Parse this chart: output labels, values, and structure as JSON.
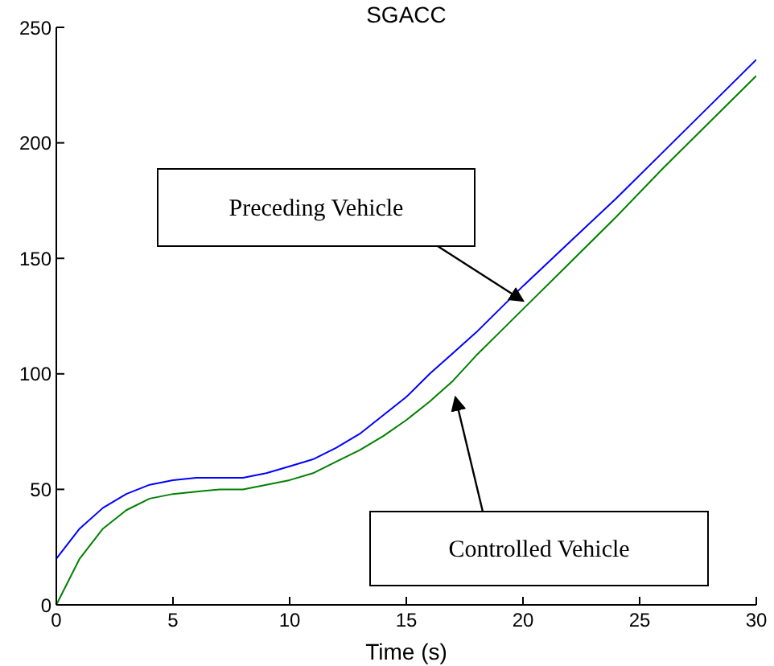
{
  "chart_data": {
    "type": "line",
    "title": "SGACC",
    "xlabel": "Time (s)",
    "xlim": [
      0,
      30
    ],
    "xticks": [
      0,
      5,
      10,
      15,
      20,
      25,
      30
    ],
    "ylim": [
      0,
      250
    ],
    "yticks": [
      0,
      50,
      100,
      150,
      200,
      250
    ],
    "grid": false,
    "marker": "none",
    "line_style": "solid",
    "series": [
      {
        "color": "#0000ff",
        "x": [
          0,
          1,
          2,
          3,
          4,
          5,
          6,
          7,
          8,
          9,
          10,
          11,
          12,
          13,
          14,
          15,
          16,
          17,
          18,
          19,
          20,
          22,
          24,
          26,
          28,
          30
        ],
        "values": [
          20,
          33,
          42,
          48,
          52,
          54,
          55,
          55,
          55,
          57,
          60,
          63,
          68,
          74,
          82,
          90,
          100,
          109,
          118,
          128,
          138,
          157,
          176,
          196,
          216,
          236
        ]
      },
      {
        "color": "#008000",
        "x": [
          0,
          1,
          2,
          3,
          4,
          5,
          6,
          7,
          8,
          9,
          10,
          11,
          12,
          13,
          14,
          15,
          16,
          17,
          18,
          19,
          20,
          22,
          24,
          26,
          28,
          30
        ],
        "values": [
          0,
          20,
          33,
          41,
          46,
          48,
          49,
          50,
          50,
          52,
          54,
          57,
          62,
          67,
          73,
          80,
          88,
          97,
          108,
          118,
          128,
          148,
          168,
          189,
          209,
          229
        ]
      }
    ],
    "annotations": [
      "Preceding Vehicle",
      "Controlled Vehicle"
    ]
  }
}
